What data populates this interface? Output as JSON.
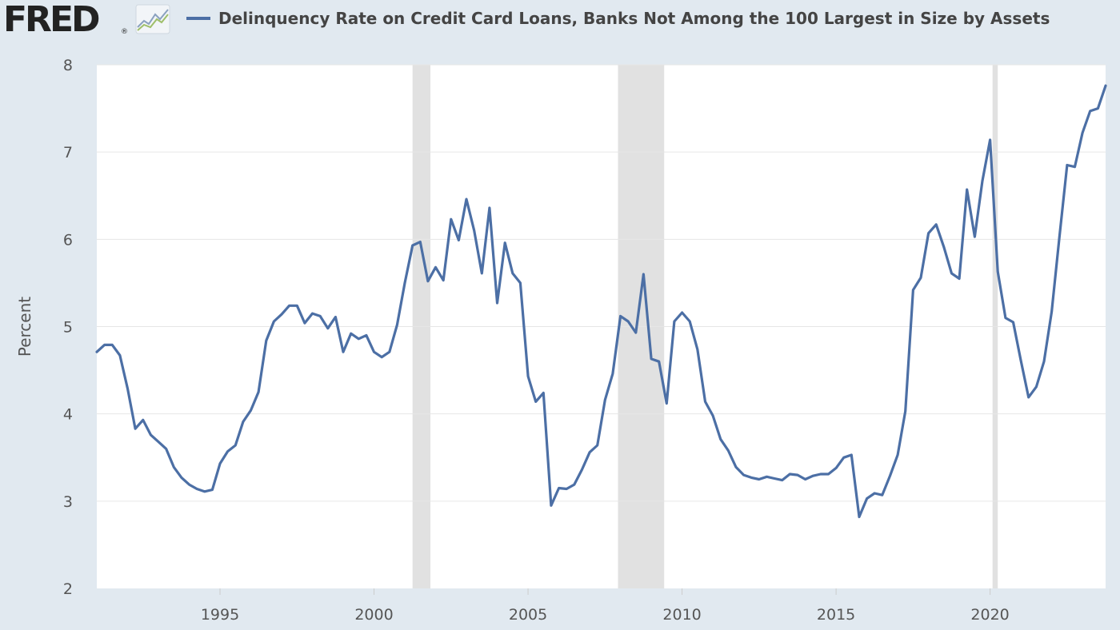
{
  "header": {
    "logo_text": "FRED",
    "logo_registered": "®",
    "series_title": "Delinquency Rate on Credit Card Loans, Banks Not Among the 100 Largest in Size by Assets"
  },
  "colors": {
    "background": "#e1e9f0",
    "plot_background": "#ffffff",
    "series_line": "#4c6fa5",
    "recession_shade": "#e1e1e1",
    "gridline": "#e6e6e6"
  },
  "icons": {
    "logo_graph": "line-chart-icon"
  },
  "chart_data": {
    "type": "line",
    "title": "Delinquency Rate on Credit Card Loans, Banks Not Among the 100 Largest in Size by Assets",
    "xlabel": "",
    "ylabel": "Percent",
    "ylim": [
      2,
      8
    ],
    "xlim": [
      1991.0,
      2023.75
    ],
    "yticks": [
      2,
      3,
      4,
      5,
      6,
      7,
      8
    ],
    "xticks": [
      1995,
      2000,
      2005,
      2010,
      2015,
      2020
    ],
    "grid": true,
    "legend_position": "top",
    "recessions": [
      [
        2001.25,
        2001.83
      ],
      [
        2007.92,
        2009.42
      ],
      [
        2020.08,
        2020.25
      ]
    ],
    "series": [
      {
        "name": "Delinquency Rate on Credit Card Loans, Banks Not Among the 100 Largest in Size by Assets",
        "x": [
          1991.0,
          1991.25,
          1991.5,
          1991.75,
          1992.0,
          1992.25,
          1992.5,
          1992.75,
          1993.0,
          1993.25,
          1993.5,
          1993.75,
          1994.0,
          1994.25,
          1994.5,
          1994.75,
          1995.0,
          1995.25,
          1995.5,
          1995.75,
          1996.0,
          1996.25,
          1996.5,
          1996.75,
          1997.0,
          1997.25,
          1997.5,
          1997.75,
          1998.0,
          1998.25,
          1998.5,
          1998.75,
          1999.0,
          1999.25,
          1999.5,
          1999.75,
          2000.0,
          2000.25,
          2000.5,
          2000.75,
          2001.0,
          2001.25,
          2001.5,
          2001.75,
          2002.0,
          2002.25,
          2002.5,
          2002.75,
          2003.0,
          2003.25,
          2003.5,
          2003.75,
          2004.0,
          2004.25,
          2004.5,
          2004.75,
          2005.0,
          2005.25,
          2005.5,
          2005.75,
          2006.0,
          2006.25,
          2006.5,
          2006.75,
          2007.0,
          2007.25,
          2007.5,
          2007.75,
          2008.0,
          2008.25,
          2008.5,
          2008.75,
          2009.0,
          2009.25,
          2009.5,
          2009.75,
          2010.0,
          2010.25,
          2010.5,
          2010.75,
          2011.0,
          2011.25,
          2011.5,
          2011.75,
          2012.0,
          2012.25,
          2012.5,
          2012.75,
          2013.0,
          2013.25,
          2013.5,
          2013.75,
          2014.0,
          2014.25,
          2014.5,
          2014.75,
          2015.0,
          2015.25,
          2015.5,
          2015.75,
          2016.0,
          2016.25,
          2016.5,
          2016.75,
          2017.0,
          2017.25,
          2017.5,
          2017.75,
          2018.0,
          2018.25,
          2018.5,
          2018.75,
          2019.0,
          2019.25,
          2019.5,
          2019.75,
          2020.0,
          2020.25,
          2020.5,
          2020.75,
          2021.0,
          2021.25,
          2021.5,
          2021.75,
          2022.0,
          2022.25,
          2022.5,
          2022.75,
          2023.0,
          2023.25,
          2023.5,
          2023.75
        ],
        "values": [
          4.71,
          4.79,
          4.79,
          4.67,
          4.29,
          3.83,
          3.93,
          3.76,
          3.68,
          3.6,
          3.39,
          3.27,
          3.19,
          3.14,
          3.11,
          3.13,
          3.43,
          3.57,
          3.64,
          3.91,
          4.04,
          4.25,
          4.84,
          5.06,
          5.14,
          5.24,
          5.24,
          5.04,
          5.15,
          5.12,
          4.98,
          5.11,
          4.71,
          4.92,
          4.86,
          4.9,
          4.71,
          4.65,
          4.71,
          5.02,
          5.5,
          5.93,
          5.97,
          5.52,
          5.68,
          5.53,
          6.23,
          5.99,
          6.46,
          6.1,
          5.61,
          6.36,
          5.27,
          5.96,
          5.61,
          5.5,
          4.43,
          4.14,
          4.24,
          2.95,
          3.15,
          3.14,
          3.19,
          3.36,
          3.56,
          3.64,
          4.16,
          4.46,
          5.12,
          5.06,
          4.93,
          5.6,
          4.63,
          4.6,
          4.12,
          5.06,
          5.16,
          5.06,
          4.74,
          4.14,
          3.98,
          3.71,
          3.58,
          3.39,
          3.3,
          3.27,
          3.25,
          3.28,
          3.26,
          3.24,
          3.31,
          3.3,
          3.25,
          3.29,
          3.31,
          3.31,
          3.38,
          3.5,
          3.53,
          2.82,
          3.03,
          3.09,
          3.07,
          3.29,
          3.53,
          4.03,
          5.42,
          5.56,
          6.07,
          6.17,
          5.91,
          5.61,
          5.55,
          6.57,
          6.03,
          6.67,
          7.14,
          5.63,
          5.1,
          5.05,
          4.61,
          4.19,
          4.31,
          4.6,
          5.17,
          6.02,
          6.85,
          6.83,
          7.22,
          7.47,
          7.5,
          7.76
        ]
      }
    ]
  }
}
